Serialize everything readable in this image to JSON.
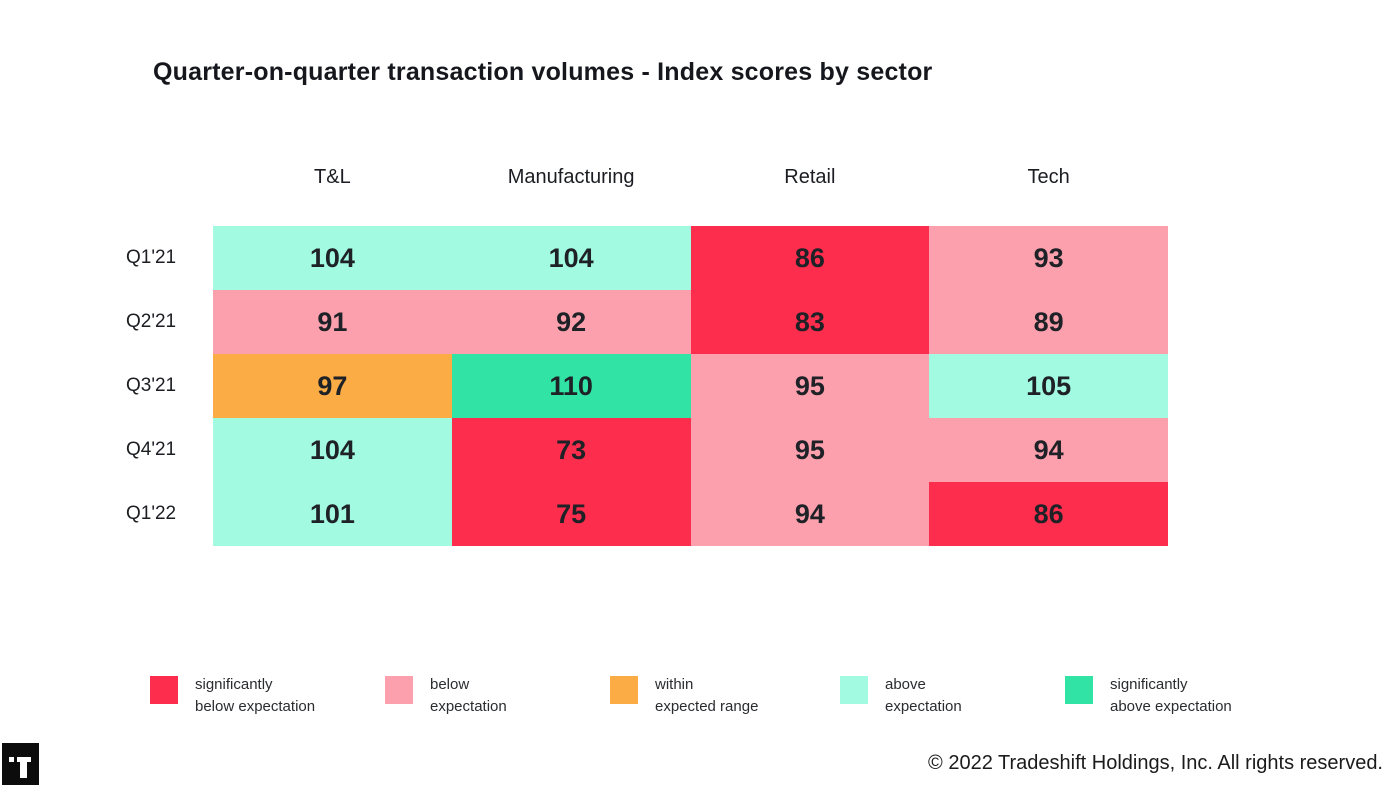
{
  "page": {
    "title": "Quarter-on-quarter transaction volumes - Index scores by sector",
    "copyright": "© 2022 Tradeshift Holdings, Inc. All rights reserved.",
    "logo": "tradeshift-logo"
  },
  "colors": {
    "significantly_below": "#FC2D4D",
    "below": "#FDA0AE",
    "within": "#FBAC45",
    "above": "#A2FAE0",
    "significantly_above": "#32E3A6",
    "value_text": "#1E2126",
    "background": "#FFFFFF"
  },
  "chart_data": {
    "type": "heatmap",
    "title": "Quarter-on-quarter transaction volumes - Index scores by sector",
    "columns": [
      "T&L",
      "Manufacturing",
      "Retail",
      "Tech"
    ],
    "rows": [
      "Q1'21",
      "Q2'21",
      "Q3'21",
      "Q4'21",
      "Q1'22"
    ],
    "values": [
      [
        104,
        104,
        86,
        93
      ],
      [
        91,
        92,
        83,
        89
      ],
      [
        97,
        110,
        95,
        105
      ],
      [
        104,
        73,
        95,
        94
      ],
      [
        101,
        75,
        94,
        86
      ]
    ],
    "cell_status": [
      [
        "above",
        "above",
        "significantly_below",
        "below"
      ],
      [
        "below",
        "below",
        "significantly_below",
        "below"
      ],
      [
        "within",
        "significantly_above",
        "below",
        "above"
      ],
      [
        "above",
        "significantly_below",
        "below",
        "below"
      ],
      [
        "above",
        "significantly_below",
        "below",
        "significantly_below"
      ]
    ],
    "legend": [
      {
        "key": "significantly_below",
        "line1": "significantly",
        "line2": "below expectation"
      },
      {
        "key": "below",
        "line1": "below",
        "line2": "expectation"
      },
      {
        "key": "within",
        "line1": "within",
        "line2": "expected range"
      },
      {
        "key": "above",
        "line1": "above",
        "line2": "expectation"
      },
      {
        "key": "significantly_above",
        "line1": "significantly",
        "line2": "above expectation"
      }
    ],
    "legend_position": "bottom",
    "grid": false
  }
}
